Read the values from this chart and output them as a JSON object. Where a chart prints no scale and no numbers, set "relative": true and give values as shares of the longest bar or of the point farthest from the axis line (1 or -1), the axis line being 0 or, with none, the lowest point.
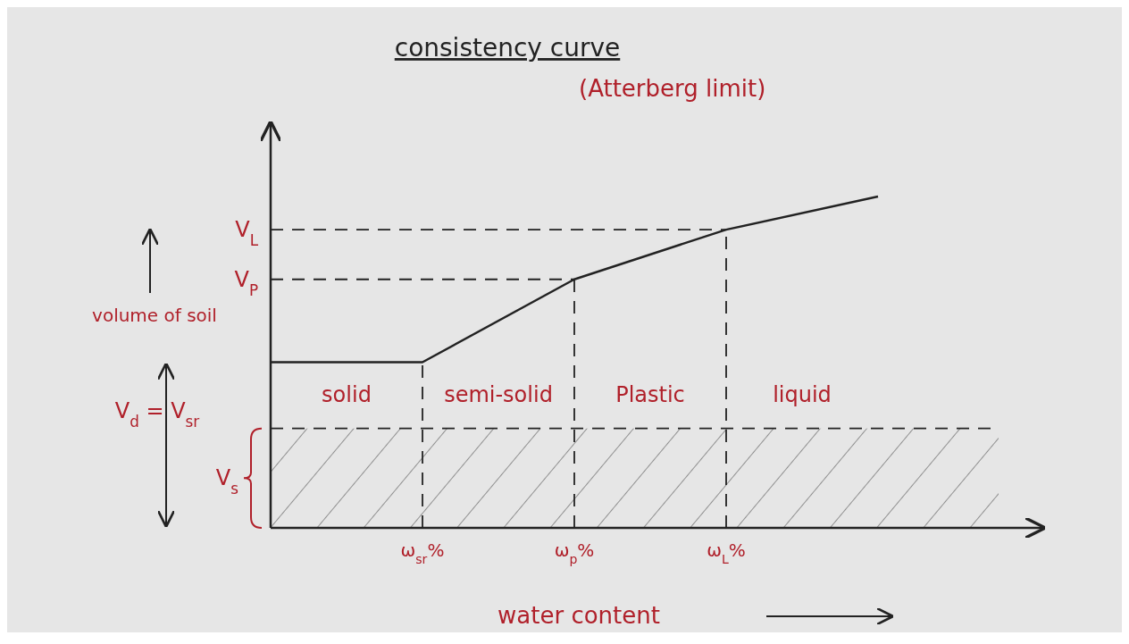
{
  "chart_data": {
    "type": "line",
    "title": "consistency curve",
    "subtitle": "(Atterberg limit)",
    "xlabel": "water content",
    "ylabel": "volume of soil",
    "categories": [
      null,
      "ω$_{sr}$%",
      "ω$_{p}$%",
      "ω$_{L}$%",
      null
    ],
    "relative": true,
    "series": [
      {
        "color": "#222222",
        "values": [
          0.5,
          0.5,
          0.75,
          0.9,
          1
        ]
      }
    ],
    "ref_lines": [
      {
        "axis": "y",
        "value": 0.75,
        "label": "V$_{P}$",
        "line_style": "dashed"
      },
      {
        "axis": "y",
        "value": 0.9,
        "label": "V$_{L}$",
        "line_style": "dashed"
      },
      {
        "axis": "x",
        "value": "ω$_{sr}$%",
        "line_style": "dashed"
      },
      {
        "axis": "x",
        "value": "ω$_{p}$%",
        "line_style": "dashed"
      },
      {
        "axis": "x",
        "value": "ω$_{L}$%",
        "line_style": "dashed"
      }
    ],
    "bands": [
      {
        "axis": "y",
        "from": 0,
        "to": 0.3,
        "label": "V$_{s}$",
        "color": "#555555"
      }
    ],
    "annotations": [
      "solid",
      "semi-solid",
      "Plastic",
      "liquid",
      "V$_{d}$ = V$_{sr}$"
    ],
    "line_style": "solid"
  }
}
